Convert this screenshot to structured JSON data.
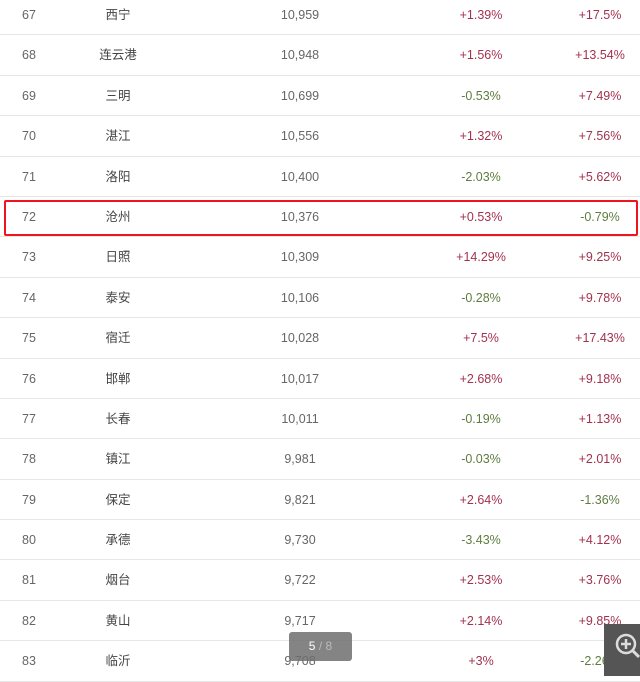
{
  "colors": {
    "positive": "#a3324f",
    "negative": "#5f7d3f",
    "highlight": "#f0141e"
  },
  "rows": [
    {
      "rank": "67",
      "city": "西宁",
      "value": "10,959",
      "change1": "+1.39%",
      "change2": "+17.5%"
    },
    {
      "rank": "68",
      "city": "连云港",
      "value": "10,948",
      "change1": "+1.56%",
      "change2": "+13.54%"
    },
    {
      "rank": "69",
      "city": "三明",
      "value": "10,699",
      "change1": "-0.53%",
      "change2": "+7.49%"
    },
    {
      "rank": "70",
      "city": "湛江",
      "value": "10,556",
      "change1": "+1.32%",
      "change2": "+7.56%"
    },
    {
      "rank": "71",
      "city": "洛阳",
      "value": "10,400",
      "change1": "-2.03%",
      "change2": "+5.62%"
    },
    {
      "rank": "72",
      "city": "沧州",
      "value": "10,376",
      "change1": "+0.53%",
      "change2": "-0.79%",
      "highlighted": true
    },
    {
      "rank": "73",
      "city": "日照",
      "value": "10,309",
      "change1": "+14.29%",
      "change2": "+9.25%"
    },
    {
      "rank": "74",
      "city": "泰安",
      "value": "10,106",
      "change1": "-0.28%",
      "change2": "+9.78%"
    },
    {
      "rank": "75",
      "city": "宿迁",
      "value": "10,028",
      "change1": "+7.5%",
      "change2": "+17.43%"
    },
    {
      "rank": "76",
      "city": "邯郸",
      "value": "10,017",
      "change1": "+2.68%",
      "change2": "+9.18%"
    },
    {
      "rank": "77",
      "city": "长春",
      "value": "10,011",
      "change1": "-0.19%",
      "change2": "+1.13%"
    },
    {
      "rank": "78",
      "city": "镇江",
      "value": "9,981",
      "change1": "-0.03%",
      "change2": "+2.01%"
    },
    {
      "rank": "79",
      "city": "保定",
      "value": "9,821",
      "change1": "+2.64%",
      "change2": "-1.36%"
    },
    {
      "rank": "80",
      "city": "承德",
      "value": "9,730",
      "change1": "-3.43%",
      "change2": "+4.12%"
    },
    {
      "rank": "81",
      "city": "烟台",
      "value": "9,722",
      "change1": "+2.53%",
      "change2": "+3.76%"
    },
    {
      "rank": "82",
      "city": "黄山",
      "value": "9,717",
      "change1": "+2.14%",
      "change2": "+9.85%"
    },
    {
      "rank": "83",
      "city": "临沂",
      "value": "9,708",
      "change1": "+3%",
      "change2": "-2.26%"
    }
  ],
  "pager": {
    "current": "5",
    "separator": " / ",
    "total": "8"
  },
  "zoom_button": {
    "icon": "zoom-in-icon"
  }
}
